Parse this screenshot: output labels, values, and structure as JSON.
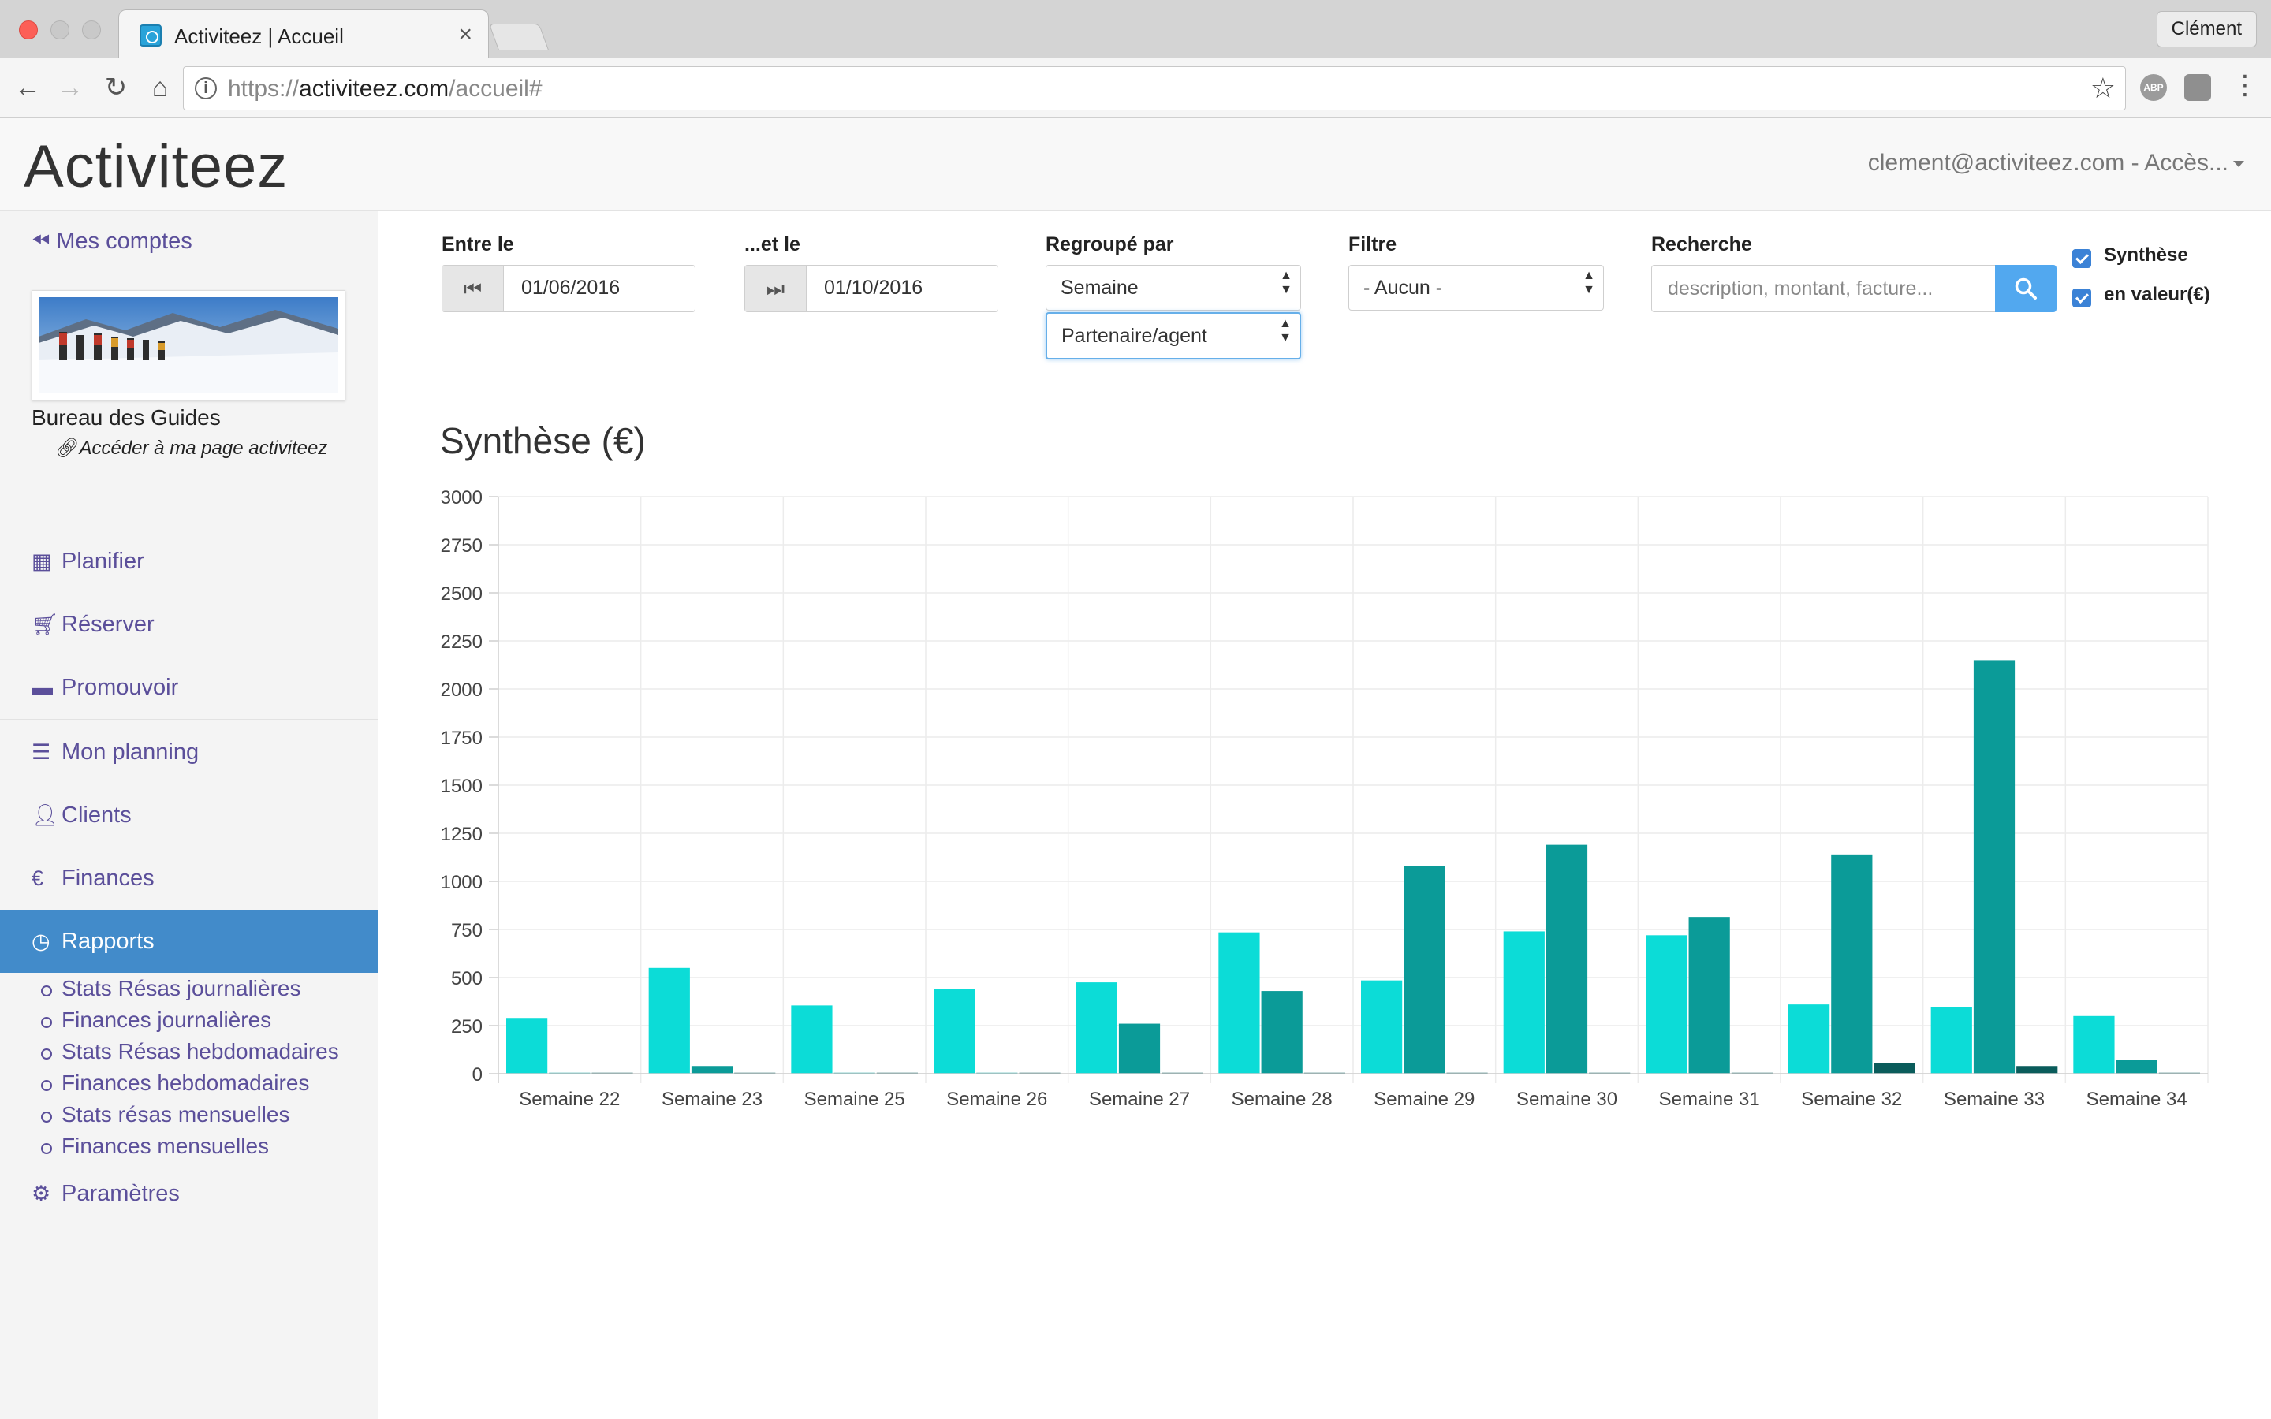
{
  "browser": {
    "tab_title": "Activiteez | Accueil",
    "tab_close": "×",
    "user": "Clément",
    "url_scheme": "https://",
    "url_host": "activiteez.com",
    "url_path": "/accueil#",
    "ext_abp": "ABP"
  },
  "app": {
    "brand": "Activiteez",
    "account": "clement@activiteez.com - Accès..."
  },
  "sidebar": {
    "back_label": "Mes comptes",
    "org_name": "Bureau des Guides",
    "org_link": "Accéder à ma page activiteez",
    "nav": [
      {
        "label": "Planifier",
        "icon": "calendar-icon"
      },
      {
        "label": "Réserver",
        "icon": "cart-icon"
      },
      {
        "label": "Promouvoir",
        "icon": "comment-icon"
      },
      {
        "label": "Mon planning",
        "icon": "tasks-icon"
      },
      {
        "label": "Clients",
        "icon": "user-icon"
      },
      {
        "label": "Finances",
        "icon": "euro-icon"
      },
      {
        "label": "Rapports",
        "icon": "dashboard-icon"
      },
      {
        "label": "Paramètres",
        "icon": "gear-icon"
      }
    ],
    "subnav": [
      "Stats Résas journalières",
      "Finances journalières",
      "Stats Résas hebdomadaires",
      "Finances hebdomadaires",
      "Stats résas mensuelles",
      "Finances mensuelles"
    ]
  },
  "filters": {
    "from_label": "Entre le",
    "from_value": "01/06/2016",
    "to_label": "...et le",
    "to_value": "01/10/2016",
    "group_label": "Regroupé par",
    "group_value": "Semaine",
    "group2_value": "Partenaire/agent",
    "filter_label": "Filtre",
    "filter_value": "- Aucun -",
    "search_label": "Recherche",
    "search_placeholder": "description, montant, facture...",
    "check_synthese": "Synthèse",
    "check_valeur": "en valeur(€)"
  },
  "colors": {
    "series1": "#0cdcd7",
    "series2": "#0b9b98",
    "series3": "#0a5c5b",
    "accent": "#428bca",
    "link": "#5b4f9a"
  },
  "chart_data": {
    "type": "bar",
    "title": "Synthèse (€)",
    "categories": [
      "Semaine 22",
      "Semaine 23",
      "Semaine 25",
      "Semaine 26",
      "Semaine 27",
      "Semaine 28",
      "Semaine 29",
      "Semaine 30",
      "Semaine 31",
      "Semaine 32",
      "Semaine 33",
      "Semaine 34"
    ],
    "series": [
      {
        "values": [
          290,
          550,
          355,
          440,
          475,
          735,
          485,
          740,
          720,
          360,
          345,
          300
        ]
      },
      {
        "values": [
          5,
          40,
          5,
          5,
          260,
          430,
          1080,
          1190,
          815,
          1140,
          2150,
          70
        ]
      },
      {
        "values": [
          5,
          5,
          5,
          5,
          5,
          5,
          5,
          5,
          5,
          55,
          40,
          5
        ]
      }
    ],
    "ylim": [
      0,
      3000
    ],
    "yticks": [
      0,
      250,
      500,
      750,
      1000,
      1250,
      1500,
      1750,
      2000,
      2250,
      2500,
      2750,
      3000
    ],
    "grid": true
  }
}
